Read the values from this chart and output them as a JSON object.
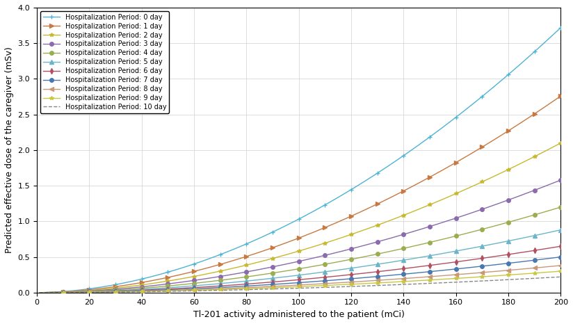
{
  "xlabel": "Tl-201 activity administered to the patient (mCi)",
  "ylabel": "Predicted effective dose of the caregiver (mSv)",
  "xlim": [
    0,
    200
  ],
  "ylim": [
    0,
    4
  ],
  "x_ticks": [
    0,
    20,
    40,
    60,
    80,
    100,
    120,
    140,
    160,
    180,
    200
  ],
  "y_ticks": [
    0,
    0.5,
    1.0,
    1.5,
    2.0,
    2.5,
    3.0,
    3.5,
    4.0
  ],
  "days": [
    0,
    1,
    2,
    3,
    4,
    5,
    6,
    7,
    8,
    9,
    10
  ],
  "colors": [
    "#4db3d4",
    "#c87941",
    "#c8b830",
    "#8b6aad",
    "#9aad50",
    "#6ab5c8",
    "#b05060",
    "#4878b0",
    "#c89878",
    "#c8c840",
    "#888888"
  ],
  "linestyles": [
    "-",
    "-",
    "-",
    "-",
    "-",
    "-",
    "-",
    "-",
    "-",
    "-",
    "--"
  ],
  "markers": [
    "+",
    ">",
    "*",
    "o",
    "o",
    "^",
    "d",
    "o",
    "<",
    "*",
    ""
  ],
  "end_values": [
    3.72,
    2.76,
    2.1,
    1.58,
    1.2,
    0.88,
    0.65,
    0.5,
    0.38,
    0.3,
    0.22
  ],
  "power": 1.85,
  "background_color": "#ffffff",
  "grid_color": "#d0d0d0",
  "legend_labels": [
    "Hospitalization Period: 0 day",
    "Hospitalization Period: 1 day",
    "Hospitalization Period: 2 day",
    "Hospitalization Period: 3 day",
    "Hospitalization Period: 4 day",
    "Hospitalization Period: 5 day",
    "Hospitalization Period: 6 day",
    "Hospitalization Period: 7 day",
    "Hospitalization Period: 8 day",
    "Hospitalization Period: 9 day",
    "Hospitalization Period: 10 day"
  ]
}
